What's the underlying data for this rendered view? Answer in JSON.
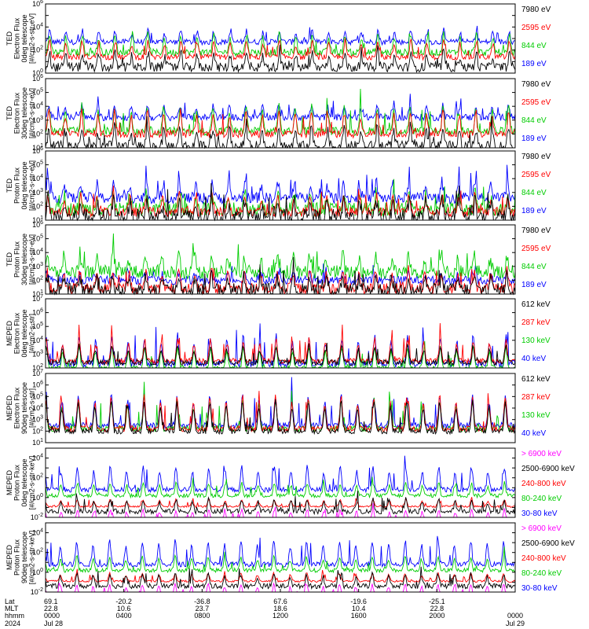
{
  "colors": {
    "blue": "#0000ff",
    "red": "#ff0000",
    "green": "#00cc00",
    "black": "#000000",
    "magenta": "#ff00ff"
  },
  "panels": [
    {
      "ylabel_lines": [
        "TED",
        "Electron Flux",
        "0deg telescope",
        "[#/cm2-s-str-eV]"
      ],
      "tick_exponents": [
        0,
        2,
        4,
        6
      ],
      "legend": [
        {
          "label": "7980 eV",
          "color": "black"
        },
        {
          "label": "2595 eV",
          "color": "red"
        },
        {
          "label": "844 eV",
          "color": "green"
        },
        {
          "label": "189 eV",
          "color": "blue"
        }
      ]
    },
    {
      "ylabel_lines": [
        "TED",
        "Electron Flux",
        "30deg telescope",
        "[#/cm2-s-str-eV]"
      ],
      "tick_exponents": [
        1,
        2,
        3,
        4,
        5,
        6
      ],
      "legend": [
        {
          "label": "7980 eV",
          "color": "black"
        },
        {
          "label": "2595 eV",
          "color": "red"
        },
        {
          "label": "844 eV",
          "color": "green"
        },
        {
          "label": "189 eV",
          "color": "blue"
        }
      ]
    },
    {
      "ylabel_lines": [
        "TED",
        "Proton Flux",
        "0deg telescope",
        "[#/cm2-s-str-eV]"
      ],
      "tick_exponents": [
        1,
        2,
        3,
        4,
        5,
        6
      ],
      "legend": [
        {
          "label": "7980 eV",
          "color": "black"
        },
        {
          "label": "2595 eV",
          "color": "red"
        },
        {
          "label": "844 eV",
          "color": "green"
        },
        {
          "label": "189 eV",
          "color": "blue"
        }
      ]
    },
    {
      "ylabel_lines": [
        "TED",
        "Proton Flux",
        "30deg telescope",
        "[#/cm2-s-str-eV]"
      ],
      "tick_exponents": [
        1,
        2,
        3,
        4,
        5,
        6
      ],
      "legend": [
        {
          "label": "7980 eV",
          "color": "black"
        },
        {
          "label": "2595 eV",
          "color": "red"
        },
        {
          "label": "844 eV",
          "color": "green"
        },
        {
          "label": "189 eV",
          "color": "blue"
        }
      ]
    },
    {
      "ylabel_lines": [
        "MEPED",
        "Electron Flux",
        "0deg telescope",
        "[#/cm2-s-str]"
      ],
      "tick_exponents": [
        2,
        3,
        4,
        5,
        6,
        7
      ],
      "legend": [
        {
          "label": "612 keV",
          "color": "black"
        },
        {
          "label": "287 keV",
          "color": "red"
        },
        {
          "label": "130 keV",
          "color": "green"
        },
        {
          "label": "40 keV",
          "color": "blue"
        }
      ]
    },
    {
      "ylabel_lines": [
        "MEPED",
        "Electron Flux",
        "90deg telescope",
        "[#/cm2-s-str]"
      ],
      "tick_exponents": [
        1,
        2,
        3,
        4,
        5,
        6,
        7
      ],
      "legend": [
        {
          "label": "612 keV",
          "color": "black"
        },
        {
          "label": "287 keV",
          "color": "red"
        },
        {
          "label": "130 keV",
          "color": "green"
        },
        {
          "label": "40 keV",
          "color": "blue"
        }
      ]
    },
    {
      "ylabel_lines": [
        "MEPED",
        "Proton Flux",
        "0deg telescope",
        "[#/cm2-s-str-keV]"
      ],
      "tick_exponents": [
        -2,
        0,
        2,
        4
      ],
      "legend": [
        {
          "label": "> 6900 keV",
          "color": "magenta"
        },
        {
          "label": "2500-6900 keV",
          "color": "black"
        },
        {
          "label": "240-800 keV",
          "color": "red"
        },
        {
          "label": "80-240 keV",
          "color": "green"
        },
        {
          "label": "30-80 keV",
          "color": "blue"
        }
      ]
    },
    {
      "ylabel_lines": [
        "MEPED",
        "Proton Flux",
        "90deg telescope",
        "[#/cm2-s-str-keV]"
      ],
      "tick_exponents": [
        -2,
        0,
        2,
        4
      ],
      "legend": [
        {
          "label": "> 6900 keV",
          "color": "magenta"
        },
        {
          "label": "2500-6900 keV",
          "color": "black"
        },
        {
          "label": "240-800 keV",
          "color": "red"
        },
        {
          "label": "80-240 keV",
          "color": "green"
        },
        {
          "label": "30-80 keV",
          "color": "blue"
        }
      ]
    }
  ],
  "chart_data": {
    "type": "line",
    "x_range": [
      "0000 Jul 28",
      "0000 Jul 29"
    ],
    "x_rows": {
      "labels": [
        "Lat",
        "MLT",
        "hhmm",
        "2024"
      ],
      "columns": [
        [
          "69.1",
          "22.8",
          "0000",
          "Jul 28"
        ],
        [
          "-20.2",
          "10.6",
          "0400",
          ""
        ],
        [
          "-36.8",
          "23.7",
          "0800",
          ""
        ],
        [
          "67.6",
          "18.6",
          "1200",
          ""
        ],
        [
          "-19.6",
          "10.4",
          "1600",
          ""
        ],
        [
          "-25.1",
          "22.8",
          "2000",
          ""
        ],
        [
          "",
          "",
          "0000",
          "Jul 29"
        ]
      ]
    },
    "grid": false,
    "legend_position": "right"
  }
}
